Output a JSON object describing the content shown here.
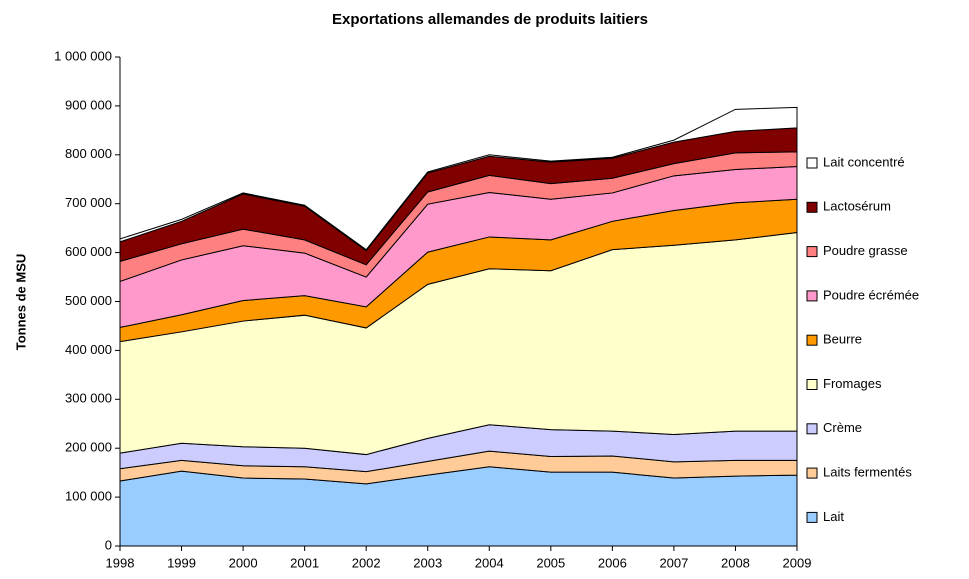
{
  "chart_data": {
    "type": "stacked_area",
    "title": "Exportations allemandes de produits laitiers",
    "y_label": "Tonnes de MSU",
    "categories": [
      "1998",
      "1999",
      "2000",
      "2001",
      "2002",
      "2003",
      "2004",
      "2005",
      "2006",
      "2007",
      "2008",
      "2009"
    ],
    "ylim": [
      0,
      1000000
    ],
    "yticks": [
      0,
      {
        "value": 100000,
        "label": "100 000"
      },
      {
        "value": 200000,
        "label": "200 000"
      },
      {
        "value": 300000,
        "label": "300 000"
      },
      {
        "value": 400000,
        "label": "400 000"
      },
      {
        "value": 500000,
        "label": "500 000"
      },
      {
        "value": 600000,
        "label": "600 000"
      },
      {
        "value": 700000,
        "label": "700 000"
      },
      {
        "value": 800000,
        "label": "800 000"
      },
      {
        "value": 900000,
        "label": "900 000"
      },
      {
        "value": 1000000,
        "label": "1 000 000"
      }
    ],
    "legend_position": "right",
    "series": [
      {
        "name": "Lait",
        "color": "#99ccff",
        "values": [
          133000,
          153000,
          139000,
          137000,
          127000,
          145000,
          162000,
          151000,
          151000,
          139000,
          143000,
          145000
        ]
      },
      {
        "name": "Laits fermentés",
        "color": "#ffcc99",
        "values": [
          25000,
          22000,
          25000,
          25000,
          25000,
          28000,
          32000,
          32000,
          33000,
          33000,
          32000,
          30000
        ]
      },
      {
        "name": "Crème",
        "color": "#ccccff",
        "values": [
          32000,
          35000,
          39000,
          38000,
          35000,
          47000,
          54000,
          55000,
          51000,
          56000,
          60000,
          60000
        ]
      },
      {
        "name": "Fromages",
        "color": "#ffffcc",
        "values": [
          228000,
          228000,
          257000,
          272000,
          259000,
          315000,
          319000,
          325000,
          371000,
          387000,
          391000,
          406000
        ]
      },
      {
        "name": "Beurre",
        "color": "#ff9900",
        "values": [
          29000,
          35000,
          42000,
          40000,
          43000,
          66000,
          65000,
          63000,
          58000,
          71000,
          76000,
          68000
        ]
      },
      {
        "name": "Poudre écrémée",
        "color": "#ff99cc",
        "values": [
          94000,
          112000,
          112000,
          87000,
          61000,
          98000,
          91000,
          83000,
          58000,
          71000,
          68000,
          67000
        ]
      },
      {
        "name": "Poudre grasse",
        "color": "#ff8080",
        "values": [
          41000,
          33000,
          34000,
          27000,
          25000,
          25000,
          35000,
          32000,
          30000,
          25000,
          34000,
          30000
        ]
      },
      {
        "name": "Lactosérum",
        "color": "#800000",
        "values": [
          40000,
          46000,
          72000,
          69000,
          29000,
          39000,
          39000,
          44000,
          41000,
          44000,
          44000,
          49000
        ]
      },
      {
        "name": "Lait concentré",
        "color": "#ffffff",
        "values": [
          6000,
          4000,
          2000,
          2000,
          2000,
          2000,
          3000,
          2000,
          2000,
          4000,
          45000,
          42000
        ]
      }
    ]
  }
}
